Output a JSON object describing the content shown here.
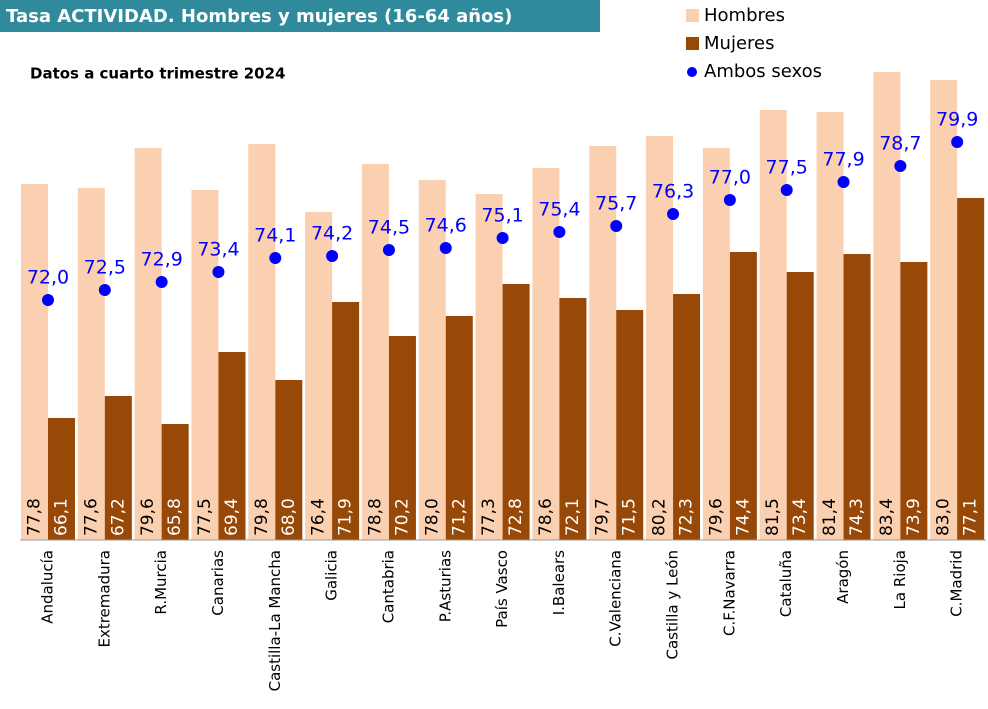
{
  "chart_data": {
    "type": "bar",
    "title": "Tasa ACTIVIDAD. Hombres y mujeres (16-64 años)",
    "subtitle": "Datos a cuarto trimestre 2024",
    "categories": [
      "Andalucía",
      "Extremadura",
      "R.Murcia",
      "Canarias",
      "Castilla-La Mancha",
      "Galicia",
      "Cantabria",
      "P.Asturias",
      "País Vasco",
      "I.Balears",
      "C.Valenciana",
      "Castilla y León",
      "C.F.Navarra",
      "Cataluña",
      "Aragón",
      "La Rioja",
      "C.Madrid"
    ],
    "series": [
      {
        "name": "Hombres",
        "color": "#fbd0b0",
        "type": "bar",
        "values": [
          77.8,
          77.6,
          79.6,
          77.5,
          79.8,
          76.4,
          78.8,
          78.0,
          77.3,
          78.6,
          79.7,
          80.2,
          79.6,
          81.5,
          81.4,
          83.4,
          83.0
        ],
        "value_labels": [
          "77,8",
          "77,6",
          "79,6",
          "77,5",
          "79,8",
          "76,4",
          "78,8",
          "78,0",
          "77,3",
          "78,6",
          "79,7",
          "80,2",
          "79,6",
          "81,5",
          "81,4",
          "83,4",
          "83,0"
        ]
      },
      {
        "name": "Mujeres",
        "color": "#984807",
        "type": "bar",
        "values": [
          66.1,
          67.2,
          65.8,
          69.4,
          68.0,
          71.9,
          70.2,
          71.2,
          72.8,
          72.1,
          71.5,
          72.3,
          74.4,
          73.4,
          74.3,
          73.9,
          77.1
        ],
        "value_labels": [
          "66,1",
          "67,2",
          "65,8",
          "69,4",
          "68,0",
          "71,9",
          "70,2",
          "71,2",
          "72,8",
          "72,1",
          "71,5",
          "72,3",
          "74,4",
          "73,4",
          "74,3",
          "73,9",
          "77,1"
        ]
      },
      {
        "name": "Ambos sexos",
        "color": "#0000ff",
        "type": "scatter",
        "values": [
          72.0,
          72.5,
          72.9,
          73.4,
          74.1,
          74.2,
          74.5,
          74.6,
          75.1,
          75.4,
          75.7,
          76.3,
          77.0,
          77.5,
          77.9,
          78.7,
          79.9
        ],
        "value_labels": [
          "72,0",
          "72,5",
          "72,9",
          "73,4",
          "74,1",
          "74,2",
          "74,5",
          "74,6",
          "75,1",
          "75,4",
          "75,7",
          "76,3",
          "77,0",
          "77,5",
          "77,9",
          "78,7",
          "79,9"
        ]
      }
    ],
    "ylim": [
      60,
      84.5
    ]
  }
}
